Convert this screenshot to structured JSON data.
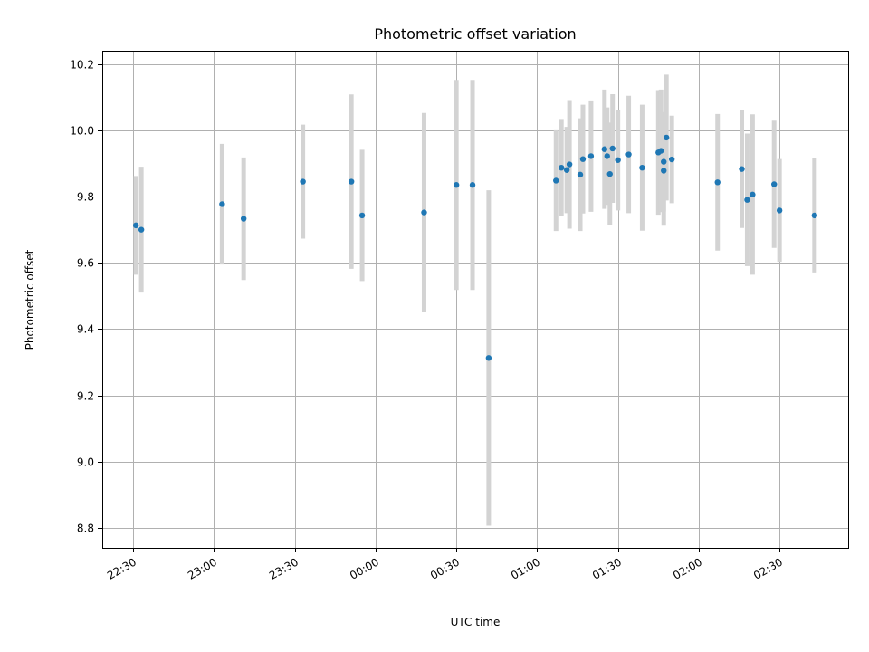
{
  "chart_data": {
    "type": "scatter",
    "title": "Photometric offset variation",
    "xlabel": "UTC time",
    "ylabel": "Photometric offset",
    "x_axis_type": "time",
    "x_start_label": "22:30",
    "x_range_minutes": [
      -11.5,
      265.5
    ],
    "xticks": [
      {
        "label": "22:30",
        "minutes": 0
      },
      {
        "label": "23:00",
        "minutes": 30
      },
      {
        "label": "23:30",
        "minutes": 60
      },
      {
        "label": "00:00",
        "minutes": 90
      },
      {
        "label": "00:30",
        "minutes": 120
      },
      {
        "label": "01:00",
        "minutes": 150
      },
      {
        "label": "01:30",
        "minutes": 180
      },
      {
        "label": "02:00",
        "minutes": 210
      },
      {
        "label": "02:30",
        "minutes": 240
      }
    ],
    "ylim": [
      8.74,
      10.24
    ],
    "yticks": [
      8.8,
      9.0,
      9.2,
      9.4,
      9.6,
      9.8,
      10.0,
      10.2
    ],
    "ytick_labels": [
      "8.8",
      "9.0",
      "9.2",
      "9.4",
      "9.6",
      "9.8",
      "10.0",
      "10.2"
    ],
    "grid": true,
    "marker_color": "#1f77b4",
    "errorbar_color": "#d3d3d3",
    "points": [
      {
        "t": "22:31",
        "y": 9.713,
        "err": 0.149
      },
      {
        "t": "22:33",
        "y": 9.7,
        "err": 0.19
      },
      {
        "t": "23:03",
        "y": 9.777,
        "err": 0.182
      },
      {
        "t": "23:11",
        "y": 9.733,
        "err": 0.185
      },
      {
        "t": "23:33",
        "y": 9.845,
        "err": 0.172
      },
      {
        "t": "23:51",
        "y": 9.845,
        "err": 0.263
      },
      {
        "t": "23:55",
        "y": 9.743,
        "err": 0.198
      },
      {
        "t": "00:18",
        "y": 9.752,
        "err": 0.3
      },
      {
        "t": "00:30",
        "y": 9.835,
        "err": 0.317
      },
      {
        "t": "00:36",
        "y": 9.835,
        "err": 0.317
      },
      {
        "t": "00:42",
        "y": 9.313,
        "err": 0.506
      },
      {
        "t": "01:07",
        "y": 9.848,
        "err": 0.152
      },
      {
        "t": "01:09",
        "y": 9.887,
        "err": 0.147
      },
      {
        "t": "01:11",
        "y": 9.88,
        "err": 0.13
      },
      {
        "t": "01:12",
        "y": 9.897,
        "err": 0.194
      },
      {
        "t": "01:16",
        "y": 9.866,
        "err": 0.17
      },
      {
        "t": "01:17",
        "y": 9.913,
        "err": 0.164
      },
      {
        "t": "01:20",
        "y": 9.922,
        "err": 0.168
      },
      {
        "t": "01:25",
        "y": 9.943,
        "err": 0.18
      },
      {
        "t": "01:26",
        "y": 9.922,
        "err": 0.147
      },
      {
        "t": "01:27",
        "y": 9.868,
        "err": 0.155
      },
      {
        "t": "01:28",
        "y": 9.945,
        "err": 0.164
      },
      {
        "t": "01:30",
        "y": 9.91,
        "err": 0.152
      },
      {
        "t": "01:34",
        "y": 9.927,
        "err": 0.177
      },
      {
        "t": "01:39",
        "y": 9.887,
        "err": 0.19
      },
      {
        "t": "01:45",
        "y": 9.933,
        "err": 0.188
      },
      {
        "t": "01:46",
        "y": 9.938,
        "err": 0.185
      },
      {
        "t": "01:47",
        "y": 9.905,
        "err": 0.15
      },
      {
        "t": "01:47",
        "y": 9.878,
        "err": 0.166
      },
      {
        "t": "01:48",
        "y": 9.978,
        "err": 0.19
      },
      {
        "t": "01:50",
        "y": 9.912,
        "err": 0.132
      },
      {
        "t": "02:07",
        "y": 9.843,
        "err": 0.206
      },
      {
        "t": "02:16",
        "y": 9.883,
        "err": 0.178
      },
      {
        "t": "02:18",
        "y": 9.79,
        "err": 0.2
      },
      {
        "t": "02:20",
        "y": 9.806,
        "err": 0.242
      },
      {
        "t": "02:28",
        "y": 9.837,
        "err": 0.192
      },
      {
        "t": "02:30",
        "y": 9.758,
        "err": 0.155
      },
      {
        "t": "02:43",
        "y": 9.743,
        "err": 0.172
      }
    ]
  }
}
